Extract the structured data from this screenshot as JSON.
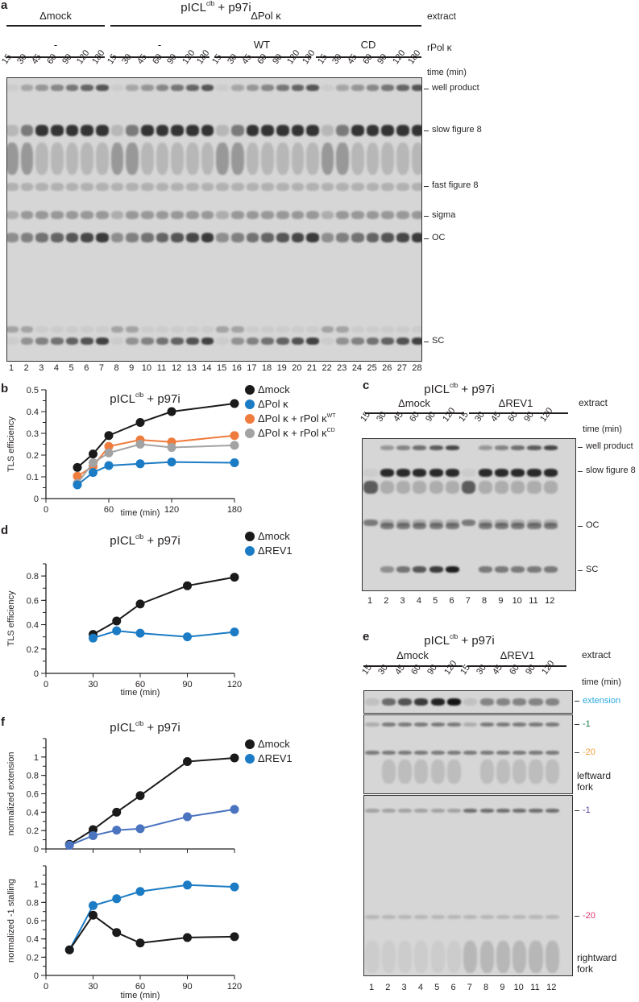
{
  "panels": {
    "a": "a",
    "b": "b",
    "c": "c",
    "d": "d",
    "e": "e",
    "f": "f"
  },
  "title": {
    "base": "pICL",
    "sup": "clb",
    "rest": " + p97i"
  },
  "colors": {
    "mock": "#1a1a1a",
    "polk": "#1b7bc4",
    "wt": "#ef7b3c",
    "cd": "#a3a3a3",
    "rev1": "#1b7bc4",
    "rev1_ext": "#4b74c0",
    "extension": "#2aa9e0",
    "minus1_left": "#1b7d4c",
    "minus20_left": "#f3a03a",
    "minus1_right": "#5b3fa3",
    "minus20_right": "#e2336c"
  },
  "panel_a": {
    "extract_label": "extract",
    "rpol_label": "rPol κ",
    "time_label": "time (min)",
    "groups": [
      "Δmock",
      "ΔPol κ"
    ],
    "subgroups": [
      "-",
      "-",
      "WT",
      "CD"
    ],
    "times": [
      "15",
      "30",
      "45",
      "60",
      "90",
      "120",
      "180"
    ],
    "lanes": [
      "1",
      "2",
      "3",
      "4",
      "5",
      "6",
      "7",
      "8",
      "9",
      "10",
      "11",
      "12",
      "13",
      "14",
      "15",
      "16",
      "17",
      "18",
      "19",
      "20",
      "21",
      "22",
      "23",
      "24",
      "25",
      "26",
      "27",
      "28"
    ],
    "bands": [
      "well product",
      "slow figure 8",
      "fast figure 8",
      "sigma",
      "OC",
      "SC"
    ]
  },
  "panel_c": {
    "extract_label": "extract",
    "time_label": "time (min)",
    "groups": [
      "Δmock",
      "ΔREV1"
    ],
    "times": [
      "15",
      "30",
      "45",
      "60",
      "90",
      "120"
    ],
    "lanes": [
      "1",
      "2",
      "3",
      "4",
      "5",
      "6",
      "7",
      "8",
      "9",
      "10",
      "11",
      "12"
    ],
    "bands": [
      "well product",
      "slow figure 8",
      "OC",
      "SC"
    ]
  },
  "panel_e": {
    "extract_label": "extract",
    "time_label": "time (min)",
    "groups": [
      "Δmock",
      "ΔREV1"
    ],
    "times": [
      "15",
      "30",
      "45",
      "60",
      "90",
      "120"
    ],
    "lanes": [
      "1",
      "2",
      "3",
      "4",
      "5",
      "6",
      "7",
      "8",
      "9",
      "10",
      "11",
      "12"
    ],
    "bands": {
      "extension": "extension",
      "left_m1": "-1",
      "left_m20": "-20",
      "leftward": "leftward",
      "leftward2": "fork",
      "right_m1": "-1",
      "right_m20": "-20",
      "rightward": "rightward",
      "rightward2": "fork"
    }
  },
  "legend_b": [
    {
      "label": "Δmock",
      "sup": ""
    },
    {
      "label": "ΔPol κ",
      "sup": ""
    },
    {
      "label": "ΔPol κ + rPol κ",
      "sup": "WT"
    },
    {
      "label": "ΔPol κ + rPol κ",
      "sup": "CD"
    }
  ],
  "legend_d": [
    {
      "label": "Δmock"
    },
    {
      "label": "ΔREV1"
    }
  ],
  "legend_f": [
    {
      "label": "Δmock"
    },
    {
      "label": "ΔREV1"
    }
  ],
  "chart_data": [
    {
      "id": "b",
      "type": "line",
      "xlabel": "time (min)",
      "ylabel": "TLS efficiency",
      "xlim": [
        0,
        180
      ],
      "ylim": [
        0,
        0.5
      ],
      "xticks": [
        0,
        60,
        120,
        180
      ],
      "yticks": [
        0,
        0.1,
        0.2,
        0.3,
        0.4,
        0.5
      ],
      "x": [
        30,
        45,
        60,
        90,
        120,
        180
      ],
      "series": [
        {
          "name": "Δmock",
          "color": "#1a1a1a",
          "values": [
            0.143,
            0.205,
            0.29,
            0.35,
            0.4,
            0.437
          ]
        },
        {
          "name": "ΔPol κ + rPol κ WT",
          "color": "#ef7b3c",
          "values": [
            0.103,
            0.148,
            0.24,
            0.27,
            0.26,
            0.29
          ]
        },
        {
          "name": "ΔPol κ + rPol κ CD",
          "color": "#a3a3a3",
          "values": [
            0.07,
            0.165,
            0.21,
            0.25,
            0.235,
            0.245
          ]
        },
        {
          "name": "ΔPol κ",
          "color": "#1b7bc4",
          "values": [
            0.063,
            0.12,
            0.152,
            0.16,
            0.168,
            0.165
          ]
        }
      ]
    },
    {
      "id": "d",
      "type": "line",
      "xlabel": "time (min)",
      "ylabel": "TLS efficiency",
      "xlim": [
        0,
        120
      ],
      "ylim": [
        0,
        0.9
      ],
      "xticks": [
        0,
        30,
        60,
        90,
        120
      ],
      "yticks": [
        0,
        0.2,
        0.4,
        0.6,
        0.8
      ],
      "x": [
        30,
        45,
        60,
        90,
        120
      ],
      "series": [
        {
          "name": "Δmock",
          "color": "#1a1a1a",
          "values": [
            0.32,
            0.43,
            0.57,
            0.72,
            0.79
          ]
        },
        {
          "name": "ΔREV1",
          "color": "#1b7bc4",
          "values": [
            0.29,
            0.35,
            0.33,
            0.3,
            0.34
          ]
        }
      ]
    },
    {
      "id": "f_top",
      "type": "line",
      "xlabel": "",
      "ylabel": "normalized extension",
      "xlim": [
        0,
        120
      ],
      "ylim": [
        0,
        1.2
      ],
      "xticks": [
        0,
        30,
        60,
        90,
        120
      ],
      "yticks": [
        0,
        0.2,
        0.4,
        0.6,
        0.8,
        1
      ],
      "x": [
        15,
        30,
        45,
        60,
        90,
        120
      ],
      "series": [
        {
          "name": "Δmock",
          "color": "#1a1a1a",
          "values": [
            0.05,
            0.21,
            0.4,
            0.58,
            0.95,
            0.99
          ]
        },
        {
          "name": "ΔREV1",
          "color": "#4b74c0",
          "values": [
            0.04,
            0.145,
            0.205,
            0.22,
            0.35,
            0.43
          ]
        }
      ]
    },
    {
      "id": "f_bottom",
      "type": "line",
      "xlabel": "time (min)",
      "ylabel": "normalized -1 stalling",
      "xlim": [
        0,
        120
      ],
      "ylim": [
        0,
        1.2
      ],
      "xticks": [
        0,
        30,
        60,
        90,
        120
      ],
      "yticks": [
        0,
        0.2,
        0.4,
        0.6,
        0.8,
        1
      ],
      "x": [
        15,
        30,
        45,
        60,
        90,
        120
      ],
      "series": [
        {
          "name": "ΔREV1",
          "color": "#1b7bc4",
          "values": [
            0.28,
            0.765,
            0.84,
            0.92,
            0.99,
            0.97
          ]
        },
        {
          "name": "Δmock",
          "color": "#1a1a1a",
          "values": [
            0.28,
            0.66,
            0.47,
            0.355,
            0.415,
            0.425
          ]
        }
      ]
    }
  ]
}
